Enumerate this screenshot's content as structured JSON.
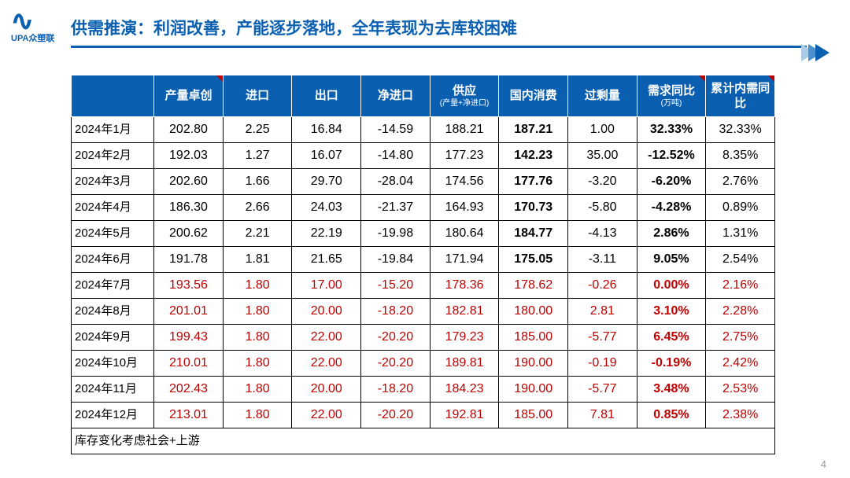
{
  "logo_brand": "UPA众塑联",
  "title": "供需推演：利润改善，产能逐步落地，全年表现为去库较困难",
  "page_number": "4",
  "footnote": "库存变化考虑社会+上游",
  "table": {
    "columns": [
      {
        "key": "month",
        "label": "",
        "mark": false
      },
      {
        "key": "prod",
        "label": "产量卓创",
        "mark": true
      },
      {
        "key": "import",
        "label": "进口",
        "mark": false
      },
      {
        "key": "export",
        "label": "出口",
        "mark": false
      },
      {
        "key": "netimp",
        "label": "净进口",
        "mark": false
      },
      {
        "key": "supply",
        "label": "供应",
        "sub": "(产量+净进口)",
        "mark": false
      },
      {
        "key": "dom",
        "label": "国内消费",
        "mark": false
      },
      {
        "key": "surplus",
        "label": "过剩量",
        "mark": false
      },
      {
        "key": "dyoy",
        "label": "需求同比",
        "sub": "(万吨)",
        "mark": true
      },
      {
        "key": "cyoy",
        "label": "累计内需同比",
        "mark": true
      }
    ],
    "rows": [
      {
        "month": "2024年1月",
        "prod": "202.80",
        "import": "2.25",
        "export": "16.84",
        "netimp": "-14.59",
        "supply": "188.21",
        "dom": "187.21",
        "surplus": "1.00",
        "dyoy": "32.33%",
        "cyoy": "32.33%",
        "red": false
      },
      {
        "month": "2024年2月",
        "prod": "192.03",
        "import": "1.27",
        "export": "16.07",
        "netimp": "-14.80",
        "supply": "177.23",
        "dom": "142.23",
        "surplus": "35.00",
        "dyoy": "-12.52%",
        "cyoy": "8.35%",
        "red": false
      },
      {
        "month": "2024年3月",
        "prod": "202.60",
        "import": "1.66",
        "export": "29.70",
        "netimp": "-28.04",
        "supply": "174.56",
        "dom": "177.76",
        "surplus": "-3.20",
        "dyoy": "-6.20%",
        "cyoy": "2.76%",
        "red": false
      },
      {
        "month": "2024年4月",
        "prod": "186.30",
        "import": "2.66",
        "export": "24.03",
        "netimp": "-21.37",
        "supply": "164.93",
        "dom": "170.73",
        "surplus": "-5.80",
        "dyoy": "-4.28%",
        "cyoy": "0.89%",
        "red": false
      },
      {
        "month": "2024年5月",
        "prod": "200.62",
        "import": "2.21",
        "export": "22.19",
        "netimp": "-19.98",
        "supply": "180.64",
        "dom": "184.77",
        "surplus": "-4.13",
        "dyoy": "2.86%",
        "cyoy": "1.31%",
        "red": false
      },
      {
        "month": "2024年6月",
        "prod": "191.78",
        "import": "1.81",
        "export": "21.65",
        "netimp": "-19.84",
        "supply": "171.94",
        "dom": "175.05",
        "surplus": "-3.11",
        "dyoy": "9.05%",
        "cyoy": "2.54%",
        "red": false
      },
      {
        "month": "2024年7月",
        "prod": "193.56",
        "import": "1.80",
        "export": "17.00",
        "netimp": "-15.20",
        "supply": "178.36",
        "dom": "178.62",
        "surplus": "-0.26",
        "dyoy": "0.00%",
        "cyoy": "2.16%",
        "red": true
      },
      {
        "month": "2024年8月",
        "prod": "201.01",
        "import": "1.80",
        "export": "20.00",
        "netimp": "-18.20",
        "supply": "182.81",
        "dom": "180.00",
        "surplus": "2.81",
        "dyoy": "3.10%",
        "cyoy": "2.28%",
        "red": true
      },
      {
        "month": "2024年9月",
        "prod": "199.43",
        "import": "1.80",
        "export": "22.00",
        "netimp": "-20.20",
        "supply": "179.23",
        "dom": "185.00",
        "surplus": "-5.77",
        "dyoy": "6.45%",
        "cyoy": "2.75%",
        "red": true
      },
      {
        "month": "2024年10月",
        "prod": "210.01",
        "import": "1.80",
        "export": "22.00",
        "netimp": "-20.20",
        "supply": "189.81",
        "dom": "190.00",
        "surplus": "-0.19",
        "dyoy": "-0.19%",
        "cyoy": "2.42%",
        "red": true
      },
      {
        "month": "2024年11月",
        "prod": "202.43",
        "import": "1.80",
        "export": "20.00",
        "netimp": "-18.20",
        "supply": "184.23",
        "dom": "190.00",
        "surplus": "-5.77",
        "dyoy": "3.48%",
        "cyoy": "2.53%",
        "red": true
      },
      {
        "month": "2024年12月",
        "prod": "213.01",
        "import": "1.80",
        "export": "22.00",
        "netimp": "-20.20",
        "supply": "192.81",
        "dom": "185.00",
        "surplus": "7.81",
        "dyoy": "0.85%",
        "cyoy": "2.38%",
        "red": true
      }
    ],
    "bold_columns": [
      "dom",
      "dyoy"
    ],
    "header_bg": "#0a5fb1",
    "border_color": "#000000",
    "red_color": "#c00000"
  }
}
